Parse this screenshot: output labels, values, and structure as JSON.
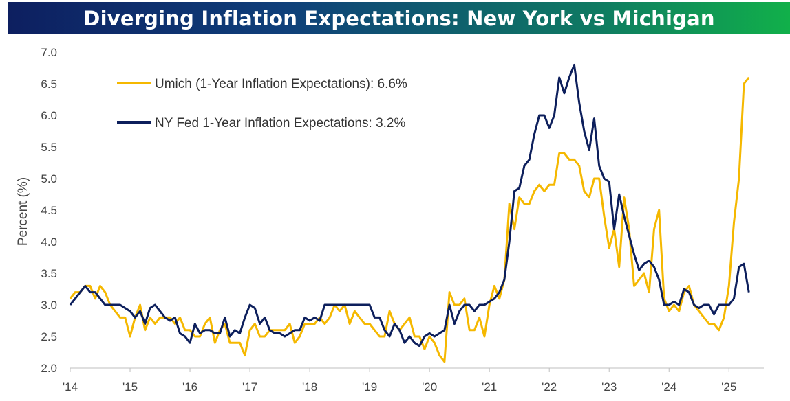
{
  "chart_data": {
    "type": "line",
    "title": "Diverging Inflation Expectations: New York vs Michigan",
    "ylabel": "Percent (%)",
    "xlabel": "",
    "ylim": [
      2.0,
      7.0
    ],
    "y_ticks": [
      "2.0",
      "2.5",
      "3.0",
      "3.5",
      "4.0",
      "4.5",
      "5.0",
      "5.5",
      "6.0",
      "6.5",
      "7.0"
    ],
    "x_ticks": [
      {
        "label": "'14",
        "year": 2014
      },
      {
        "label": "'15",
        "year": 2015
      },
      {
        "label": "'16",
        "year": 2016
      },
      {
        "label": "'17",
        "year": 2017
      },
      {
        "label": "'18",
        "year": 2018
      },
      {
        "label": "'19",
        "year": 2019
      },
      {
        "label": "'20",
        "year": 2020
      },
      {
        "label": "'21",
        "year": 2021
      },
      {
        "label": "'22",
        "year": 2022
      },
      {
        "label": "'23",
        "year": 2023
      },
      {
        "label": "'24",
        "year": 2024
      },
      {
        "label": "'25",
        "year": 2025
      }
    ],
    "xlim": [
      2014.0,
      2025.583
    ],
    "legend_position": "top-left",
    "series": [
      {
        "name": "Umich (1-Year Inflation Expectations): 6.6%",
        "color": "#f5b800",
        "points": [
          [
            2014.0,
            3.1
          ],
          [
            2014.083,
            3.2
          ],
          [
            2014.167,
            3.2
          ],
          [
            2014.25,
            3.3
          ],
          [
            2014.333,
            3.3
          ],
          [
            2014.417,
            3.1
          ],
          [
            2014.5,
            3.3
          ],
          [
            2014.583,
            3.2
          ],
          [
            2014.667,
            3.0
          ],
          [
            2014.75,
            2.9
          ],
          [
            2014.833,
            2.8
          ],
          [
            2014.917,
            2.8
          ],
          [
            2015.0,
            2.5
          ],
          [
            2015.083,
            2.8
          ],
          [
            2015.167,
            3.0
          ],
          [
            2015.25,
            2.6
          ],
          [
            2015.333,
            2.8
          ],
          [
            2015.417,
            2.7
          ],
          [
            2015.5,
            2.8
          ],
          [
            2015.583,
            2.8
          ],
          [
            2015.667,
            2.8
          ],
          [
            2015.75,
            2.7
          ],
          [
            2015.833,
            2.8
          ],
          [
            2015.917,
            2.6
          ],
          [
            2016.0,
            2.6
          ],
          [
            2016.083,
            2.5
          ],
          [
            2016.167,
            2.5
          ],
          [
            2016.25,
            2.7
          ],
          [
            2016.333,
            2.8
          ],
          [
            2016.417,
            2.4
          ],
          [
            2016.5,
            2.6
          ],
          [
            2016.583,
            2.7
          ],
          [
            2016.667,
            2.4
          ],
          [
            2016.75,
            2.4
          ],
          [
            2016.833,
            2.4
          ],
          [
            2016.917,
            2.2
          ],
          [
            2017.0,
            2.6
          ],
          [
            2017.083,
            2.7
          ],
          [
            2017.167,
            2.5
          ],
          [
            2017.25,
            2.5
          ],
          [
            2017.333,
            2.6
          ],
          [
            2017.417,
            2.6
          ],
          [
            2017.5,
            2.6
          ],
          [
            2017.583,
            2.6
          ],
          [
            2017.667,
            2.7
          ],
          [
            2017.75,
            2.4
          ],
          [
            2017.833,
            2.5
          ],
          [
            2017.917,
            2.7
          ],
          [
            2018.0,
            2.7
          ],
          [
            2018.083,
            2.7
          ],
          [
            2018.167,
            2.8
          ],
          [
            2018.25,
            2.7
          ],
          [
            2018.333,
            2.8
          ],
          [
            2018.417,
            3.0
          ],
          [
            2018.5,
            2.9
          ],
          [
            2018.583,
            3.0
          ],
          [
            2018.667,
            2.7
          ],
          [
            2018.75,
            2.9
          ],
          [
            2018.833,
            2.8
          ],
          [
            2018.917,
            2.7
          ],
          [
            2019.0,
            2.7
          ],
          [
            2019.083,
            2.6
          ],
          [
            2019.167,
            2.5
          ],
          [
            2019.25,
            2.5
          ],
          [
            2019.333,
            2.9
          ],
          [
            2019.417,
            2.7
          ],
          [
            2019.5,
            2.6
          ],
          [
            2019.583,
            2.7
          ],
          [
            2019.667,
            2.8
          ],
          [
            2019.75,
            2.5
          ],
          [
            2019.833,
            2.5
          ],
          [
            2019.917,
            2.3
          ],
          [
            2020.0,
            2.5
          ],
          [
            2020.083,
            2.4
          ],
          [
            2020.167,
            2.2
          ],
          [
            2020.25,
            2.1
          ],
          [
            2020.333,
            3.2
          ],
          [
            2020.417,
            3.0
          ],
          [
            2020.5,
            3.0
          ],
          [
            2020.583,
            3.1
          ],
          [
            2020.667,
            2.6
          ],
          [
            2020.75,
            2.6
          ],
          [
            2020.833,
            2.8
          ],
          [
            2020.917,
            2.5
          ],
          [
            2021.0,
            3.0
          ],
          [
            2021.083,
            3.3
          ],
          [
            2021.167,
            3.1
          ],
          [
            2021.25,
            3.4
          ],
          [
            2021.333,
            4.6
          ],
          [
            2021.417,
            4.2
          ],
          [
            2021.5,
            4.7
          ],
          [
            2021.583,
            4.6
          ],
          [
            2021.667,
            4.6
          ],
          [
            2021.75,
            4.8
          ],
          [
            2021.833,
            4.9
          ],
          [
            2021.917,
            4.8
          ],
          [
            2022.0,
            4.9
          ],
          [
            2022.083,
            4.9
          ],
          [
            2022.167,
            5.4
          ],
          [
            2022.25,
            5.4
          ],
          [
            2022.333,
            5.3
          ],
          [
            2022.417,
            5.3
          ],
          [
            2022.5,
            5.2
          ],
          [
            2022.583,
            4.8
          ],
          [
            2022.667,
            4.7
          ],
          [
            2022.75,
            5.0
          ],
          [
            2022.833,
            5.0
          ],
          [
            2022.917,
            4.4
          ],
          [
            2023.0,
            3.9
          ],
          [
            2023.083,
            4.2
          ],
          [
            2023.167,
            3.6
          ],
          [
            2023.25,
            4.7
          ],
          [
            2023.333,
            4.2
          ],
          [
            2023.417,
            3.3
          ],
          [
            2023.5,
            3.4
          ],
          [
            2023.583,
            3.5
          ],
          [
            2023.667,
            3.2
          ],
          [
            2023.75,
            4.2
          ],
          [
            2023.833,
            4.5
          ],
          [
            2023.917,
            3.1
          ],
          [
            2024.0,
            2.9
          ],
          [
            2024.083,
            3.0
          ],
          [
            2024.167,
            2.9
          ],
          [
            2024.25,
            3.2
          ],
          [
            2024.333,
            3.3
          ],
          [
            2024.417,
            3.0
          ],
          [
            2024.5,
            2.9
          ],
          [
            2024.583,
            2.8
          ],
          [
            2024.667,
            2.7
          ],
          [
            2024.75,
            2.7
          ],
          [
            2024.833,
            2.6
          ],
          [
            2024.917,
            2.8
          ],
          [
            2025.0,
            3.3
          ],
          [
            2025.083,
            4.3
          ],
          [
            2025.167,
            5.0
          ],
          [
            2025.25,
            6.5
          ],
          [
            2025.333,
            6.6
          ]
        ]
      },
      {
        "name": "NY Fed 1-Year Inflation Expectations: 3.2%",
        "color": "#0d1f5c",
        "points": [
          [
            2014.0,
            3.0
          ],
          [
            2014.083,
            3.1
          ],
          [
            2014.167,
            3.2
          ],
          [
            2014.25,
            3.3
          ],
          [
            2014.333,
            3.2
          ],
          [
            2014.417,
            3.2
          ],
          [
            2014.5,
            3.1
          ],
          [
            2014.583,
            3.0
          ],
          [
            2014.667,
            3.0
          ],
          [
            2014.75,
            3.0
          ],
          [
            2014.833,
            3.0
          ],
          [
            2014.917,
            2.95
          ],
          [
            2015.0,
            2.9
          ],
          [
            2015.083,
            2.8
          ],
          [
            2015.167,
            2.9
          ],
          [
            2015.25,
            2.7
          ],
          [
            2015.333,
            2.95
          ],
          [
            2015.417,
            3.0
          ],
          [
            2015.5,
            2.9
          ],
          [
            2015.583,
            2.8
          ],
          [
            2015.667,
            2.75
          ],
          [
            2015.75,
            2.8
          ],
          [
            2015.833,
            2.55
          ],
          [
            2015.917,
            2.5
          ],
          [
            2016.0,
            2.4
          ],
          [
            2016.083,
            2.7
          ],
          [
            2016.167,
            2.55
          ],
          [
            2016.25,
            2.6
          ],
          [
            2016.333,
            2.6
          ],
          [
            2016.417,
            2.55
          ],
          [
            2016.5,
            2.55
          ],
          [
            2016.583,
            2.8
          ],
          [
            2016.667,
            2.5
          ],
          [
            2016.75,
            2.6
          ],
          [
            2016.833,
            2.55
          ],
          [
            2016.917,
            2.8
          ],
          [
            2017.0,
            3.0
          ],
          [
            2017.083,
            2.95
          ],
          [
            2017.167,
            2.7
          ],
          [
            2017.25,
            2.8
          ],
          [
            2017.333,
            2.6
          ],
          [
            2017.417,
            2.55
          ],
          [
            2017.5,
            2.55
          ],
          [
            2017.583,
            2.5
          ],
          [
            2017.667,
            2.55
          ],
          [
            2017.75,
            2.6
          ],
          [
            2017.833,
            2.6
          ],
          [
            2017.917,
            2.8
          ],
          [
            2018.0,
            2.75
          ],
          [
            2018.083,
            2.8
          ],
          [
            2018.167,
            2.75
          ],
          [
            2018.25,
            3.0
          ],
          [
            2018.333,
            3.0
          ],
          [
            2018.417,
            3.0
          ],
          [
            2018.5,
            3.0
          ],
          [
            2018.583,
            3.0
          ],
          [
            2018.667,
            3.0
          ],
          [
            2018.75,
            3.0
          ],
          [
            2018.833,
            3.0
          ],
          [
            2018.917,
            3.0
          ],
          [
            2019.0,
            3.0
          ],
          [
            2019.083,
            2.8
          ],
          [
            2019.167,
            2.8
          ],
          [
            2019.25,
            2.6
          ],
          [
            2019.333,
            2.5
          ],
          [
            2019.417,
            2.7
          ],
          [
            2019.5,
            2.6
          ],
          [
            2019.583,
            2.4
          ],
          [
            2019.667,
            2.5
          ],
          [
            2019.75,
            2.4
          ],
          [
            2019.833,
            2.35
          ],
          [
            2019.917,
            2.5
          ],
          [
            2020.0,
            2.55
          ],
          [
            2020.083,
            2.5
          ],
          [
            2020.167,
            2.55
          ],
          [
            2020.25,
            2.6
          ],
          [
            2020.333,
            3.0
          ],
          [
            2020.417,
            2.7
          ],
          [
            2020.5,
            2.9
          ],
          [
            2020.583,
            3.0
          ],
          [
            2020.667,
            3.0
          ],
          [
            2020.75,
            2.9
          ],
          [
            2020.833,
            3.0
          ],
          [
            2020.917,
            3.0
          ],
          [
            2021.0,
            3.05
          ],
          [
            2021.083,
            3.1
          ],
          [
            2021.167,
            3.2
          ],
          [
            2021.25,
            3.4
          ],
          [
            2021.333,
            4.0
          ],
          [
            2021.417,
            4.8
          ],
          [
            2021.5,
            4.85
          ],
          [
            2021.583,
            5.2
          ],
          [
            2021.667,
            5.3
          ],
          [
            2021.75,
            5.7
          ],
          [
            2021.833,
            6.0
          ],
          [
            2021.917,
            6.0
          ],
          [
            2022.0,
            5.8
          ],
          [
            2022.083,
            6.0
          ],
          [
            2022.167,
            6.6
          ],
          [
            2022.25,
            6.35
          ],
          [
            2022.333,
            6.6
          ],
          [
            2022.417,
            6.8
          ],
          [
            2022.5,
            6.2
          ],
          [
            2022.583,
            5.75
          ],
          [
            2022.667,
            5.45
          ],
          [
            2022.75,
            5.95
          ],
          [
            2022.833,
            5.2
          ],
          [
            2022.917,
            5.0
          ],
          [
            2023.0,
            4.95
          ],
          [
            2023.083,
            4.2
          ],
          [
            2023.167,
            4.75
          ],
          [
            2023.25,
            4.4
          ],
          [
            2023.333,
            4.1
          ],
          [
            2023.417,
            3.8
          ],
          [
            2023.5,
            3.55
          ],
          [
            2023.583,
            3.65
          ],
          [
            2023.667,
            3.7
          ],
          [
            2023.75,
            3.6
          ],
          [
            2023.833,
            3.4
          ],
          [
            2023.917,
            3.0
          ],
          [
            2024.0,
            3.0
          ],
          [
            2024.083,
            3.05
          ],
          [
            2024.167,
            3.0
          ],
          [
            2024.25,
            3.25
          ],
          [
            2024.333,
            3.2
          ],
          [
            2024.417,
            3.0
          ],
          [
            2024.5,
            2.95
          ],
          [
            2024.583,
            3.0
          ],
          [
            2024.667,
            3.0
          ],
          [
            2024.75,
            2.85
          ],
          [
            2024.833,
            3.0
          ],
          [
            2024.917,
            3.0
          ],
          [
            2025.0,
            3.0
          ],
          [
            2025.083,
            3.1
          ],
          [
            2025.167,
            3.6
          ],
          [
            2025.25,
            3.65
          ],
          [
            2025.333,
            3.2
          ]
        ]
      }
    ]
  }
}
